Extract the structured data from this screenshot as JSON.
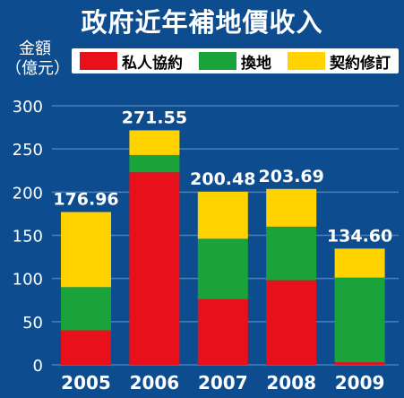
{
  "colors": {
    "background": "#0d4d8f",
    "gridline": "#4a7fb8",
    "text": "#ffffff"
  },
  "chart_data": {
    "type": "bar",
    "stacked": true,
    "title": "政府近年補地價收入",
    "ylabel": "金額（億元）",
    "ylim": [
      0,
      300
    ],
    "yticks": [
      0,
      50,
      100,
      150,
      200,
      250,
      300
    ],
    "grid": true,
    "legend_position": "top",
    "categories": [
      "2005",
      "2006",
      "2007",
      "2008",
      "2009"
    ],
    "series": [
      {
        "name": "私人協約",
        "color": "#e8101a",
        "values": [
          40,
          223,
          76,
          98,
          3
        ]
      },
      {
        "name": "換地",
        "color": "#1aa33a",
        "values": [
          50,
          20,
          70,
          62,
          98
        ]
      },
      {
        "name": "契約修訂",
        "color": "#ffd200",
        "values": [
          86.96,
          28.55,
          54.48,
          43.69,
          33.6
        ]
      }
    ],
    "totals": [
      "176.96",
      "271.55",
      "200.48",
      "203.69",
      "134.60"
    ]
  }
}
